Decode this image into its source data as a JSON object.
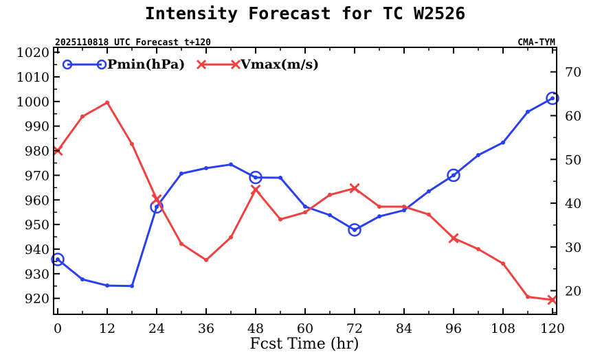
{
  "chart_data": {
    "type": "line",
    "title": "Intensity Forecast for TC W2526",
    "subtitle_left": "2025110818 UTC Forecast t+120",
    "subtitle_right": "CMA-TYM",
    "xlabel": "Fcst Time (hr)",
    "x": [
      0,
      6,
      12,
      18,
      24,
      30,
      36,
      42,
      48,
      54,
      60,
      66,
      72,
      78,
      84,
      90,
      96,
      102,
      108,
      114,
      120
    ],
    "xlim": [
      -1,
      121
    ],
    "xticks": [
      0,
      12,
      24,
      36,
      48,
      60,
      72,
      84,
      96,
      108,
      120
    ],
    "xtick_labels": [
      "0",
      "12",
      "24",
      "36",
      "48",
      "60",
      "72",
      "84",
      "96",
      "108",
      "120"
    ],
    "left_axis": {
      "label": "Pmin(hPa)",
      "ylim": [
        913.5,
        1022
      ],
      "ticks": [
        920,
        930,
        940,
        950,
        960,
        970,
        980,
        990,
        1000,
        1010,
        1020
      ],
      "tick_labels": [
        "920",
        "930",
        "940",
        "950",
        "960",
        "970",
        "980",
        "990",
        "1000",
        "1010",
        "1020"
      ]
    },
    "right_axis": {
      "label": "Vmax(m/s)",
      "ylim": [
        14.6,
        75.6
      ],
      "ticks": [
        20,
        30,
        40,
        50,
        60,
        70
      ],
      "tick_labels": [
        "20",
        "30",
        "40",
        "50",
        "60",
        "70"
      ]
    },
    "series": [
      {
        "name": "Pmin(hPa)",
        "axis": "left",
        "color": "#2a3ff0",
        "marker": "circle",
        "values": [
          935.8,
          927.7,
          925.2,
          925.0,
          957.2,
          970.7,
          972.9,
          974.4,
          969.1,
          969.0,
          957.3,
          953.8,
          947.8,
          953.3,
          955.8,
          963.5,
          970.0,
          978.2,
          983.3,
          995.8,
          1001.3
        ]
      },
      {
        "name": "Vmax(m/s)",
        "axis": "right",
        "color": "#f04040",
        "marker": "x",
        "values": [
          52.0,
          59.8,
          63.0,
          53.5,
          40.9,
          30.7,
          27.0,
          32.2,
          43.1,
          36.3,
          37.9,
          41.9,
          43.4,
          39.2,
          39.2,
          37.4,
          32.0,
          29.5,
          26.2,
          18.6,
          17.9
        ]
      }
    ],
    "big_marker_indices": [
      0,
      4,
      8,
      12,
      16,
      20
    ],
    "legend_position": "top-left"
  }
}
